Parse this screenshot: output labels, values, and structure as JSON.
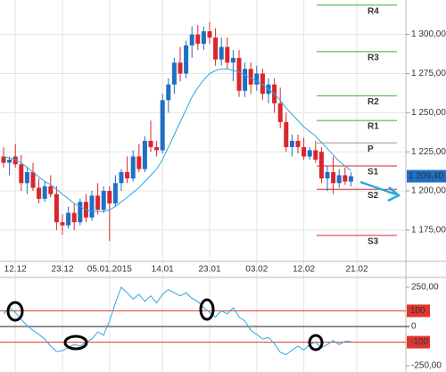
{
  "chart_data": [
    {
      "type": "candlestick",
      "categories": [
        null,
        null,
        "12.12",
        null,
        null,
        null,
        null,
        null,
        null,
        null,
        "23.12",
        null,
        null,
        null,
        null,
        null,
        null,
        null,
        "05.01.2015",
        null,
        null,
        null,
        null,
        null,
        null,
        null,
        null,
        "14.01",
        null,
        null,
        null,
        null,
        null,
        null,
        null,
        "23.01",
        null,
        null,
        null,
        null,
        null,
        null,
        null,
        "03.02",
        null,
        null,
        null,
        null,
        null,
        null,
        null,
        "12.02",
        null,
        null,
        null,
        null,
        null,
        null,
        null,
        null,
        "21.02"
      ],
      "open": [
        1222,
        1218,
        1222,
        1217,
        1205,
        1212,
        1202,
        1195,
        1203,
        1198,
        1180,
        1178,
        1186,
        1180,
        1193,
        1183,
        1197,
        1188,
        1200,
        1192,
        1205,
        1212,
        1208,
        1222,
        1214,
        1232,
        1228,
        1226,
        1258,
        1268,
        1282,
        1275,
        1293,
        1300,
        1294,
        1302,
        1298,
        1284,
        1292,
        1282,
        1285,
        1264,
        1278,
        1268,
        1275,
        1262,
        1268,
        1256,
        1244,
        1228,
        1232,
        1228,
        1222,
        1226,
        1225,
        1208,
        1212,
        1205,
        1210,
        1206,
        null
      ],
      "high": [
        1228,
        1222,
        1230,
        1223,
        1215,
        1218,
        1208,
        1206,
        1210,
        1203,
        1185,
        1190,
        1192,
        1195,
        1198,
        1200,
        1205,
        1203,
        1203,
        1210,
        1214,
        1222,
        1226,
        1230,
        1235,
        1245,
        1232,
        1262,
        1272,
        1285,
        1292,
        1296,
        1305,
        1306,
        1305,
        1308,
        1304,
        1298,
        1298,
        1290,
        1290,
        1282,
        1282,
        1280,
        1278,
        1272,
        1272,
        1266,
        1250,
        1236,
        1236,
        1234,
        1228,
        1232,
        1228,
        1216,
        1222,
        1214,
        1215,
        1212,
        null
      ],
      "low": [
        1215,
        1210,
        1215,
        1200,
        1198,
        1200,
        1192,
        1193,
        1196,
        1175,
        1172,
        1176,
        1175,
        1178,
        1180,
        1181,
        1185,
        1186,
        1168,
        1190,
        1200,
        1205,
        1206,
        1212,
        1212,
        1225,
        1222,
        1224,
        1250,
        1262,
        1270,
        1272,
        1285,
        1290,
        1290,
        1294,
        1280,
        1280,
        1278,
        1270,
        1260,
        1260,
        1262,
        1264,
        1258,
        1256,
        1250,
        1240,
        1225,
        1222,
        1224,
        1220,
        1220,
        1218,
        1205,
        1200,
        1198,
        1202,
        1204,
        1203,
        null
      ],
      "close": [
        1218,
        1220,
        1217,
        1205,
        1212,
        1202,
        1195,
        1203,
        1198,
        1180,
        1178,
        1186,
        1180,
        1193,
        1183,
        1197,
        1188,
        1200,
        1192,
        1205,
        1212,
        1208,
        1222,
        1214,
        1232,
        1228,
        1226,
        1258,
        1268,
        1282,
        1275,
        1293,
        1300,
        1294,
        1302,
        1298,
        1284,
        1292,
        1282,
        1285,
        1264,
        1278,
        1268,
        1275,
        1262,
        1268,
        1256,
        1244,
        1228,
        1232,
        1228,
        1222,
        1226,
        1220,
        1208,
        1212,
        1205,
        1210,
        1206,
        1209.4,
        null
      ],
      "up_color": "#1f6fc4",
      "down_color": "#d8262b",
      "ma": {
        "color": "#2aa8e0",
        "values": [
          1222,
          1221,
          1220,
          1218,
          1215,
          1212,
          1209,
          1206,
          1204,
          1201,
          1198,
          1195,
          1192,
          1190,
          1188,
          1187,
          1187,
          1187,
          1188,
          1190,
          1193,
          1196,
          1199,
          1202,
          1206,
          1210,
          1214,
          1220,
          1228,
          1236,
          1244,
          1252,
          1260,
          1266,
          1271,
          1275,
          1277,
          1278,
          1278,
          1277,
          1276,
          1274,
          1272,
          1270,
          1268,
          1265,
          1262,
          1258,
          1253,
          1249,
          1245,
          1241,
          1238,
          1235,
          1231,
          1227,
          1223,
          1219,
          1216,
          1213,
          null
        ]
      },
      "levels": [
        {
          "label": "R4",
          "value": 1318.7,
          "color": "#33b233"
        },
        {
          "label": "R3",
          "value": 1289,
          "color": "#33b233"
        },
        {
          "label": "R2",
          "value": 1260.8,
          "color": "#33b233"
        },
        {
          "label": "R1",
          "value": 1245,
          "color": "#33b233"
        },
        {
          "label": "P",
          "value": 1230.7,
          "color": "#999999"
        },
        {
          "label": "S1",
          "value": 1216,
          "color": "#d8262b"
        },
        {
          "label": "S2",
          "value": 1201,
          "color": "#d8262b"
        },
        {
          "label": "S3",
          "value": 1171.6,
          "color": "#d8262b"
        }
      ],
      "last_price": {
        "value": 1209.4,
        "label": "1 209,40"
      },
      "ylim": [
        1155,
        1322
      ],
      "yticks": [
        {
          "value": 1175,
          "label": "1 175,00"
        },
        {
          "value": 1200,
          "label": "1 200,00"
        },
        {
          "value": 1225,
          "label": "1 225,00"
        },
        {
          "value": 1250,
          "label": "1 250,00"
        },
        {
          "value": 1275,
          "label": "1 275,00"
        },
        {
          "value": 1300,
          "label": "1 300,00"
        }
      ],
      "grid": true
    },
    {
      "type": "line",
      "values": [
        80,
        120,
        90,
        45,
        5,
        -25,
        -50,
        -80,
        -125,
        -160,
        -155,
        -135,
        -115,
        -125,
        -100,
        -80,
        -35,
        -55,
        35,
        150,
        250,
        215,
        175,
        205,
        160,
        195,
        150,
        205,
        235,
        215,
        195,
        215,
        180,
        160,
        120,
        90,
        60,
        100,
        80,
        120,
        60,
        35,
        -25,
        -50,
        -80,
        -70,
        -110,
        -165,
        -180,
        -150,
        -125,
        -150,
        -115,
        -100,
        -135,
        -115,
        -90,
        -115,
        -95,
        -95,
        null
      ],
      "color": "#2aa8e0",
      "levels": [
        100,
        -100
      ],
      "level_color": "#e0352f",
      "ylim": [
        -273,
        307
      ],
      "yticks": [
        {
          "value": 250,
          "label": "250,00"
        },
        0,
        {
          "value": -250,
          "label": "-250,00"
        }
      ]
    }
  ]
}
